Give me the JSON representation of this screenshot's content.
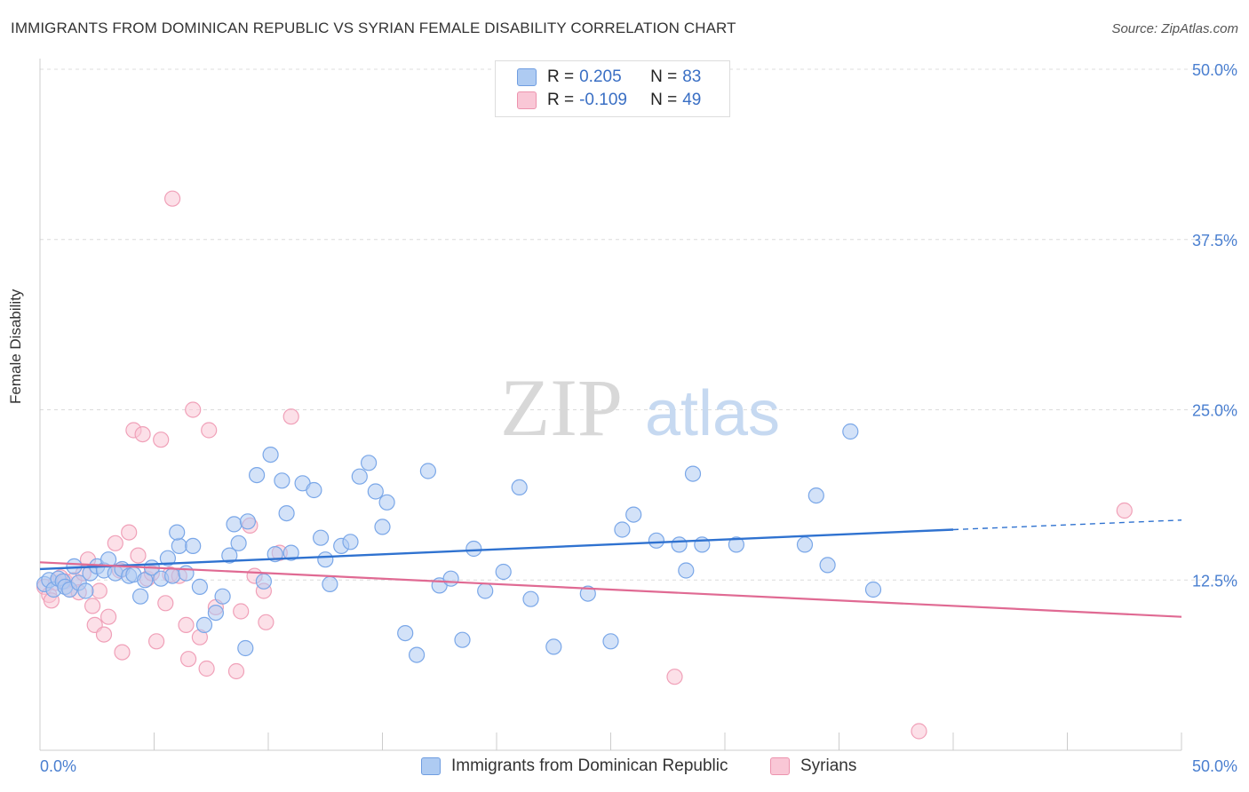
{
  "title": "IMMIGRANTS FROM DOMINICAN REPUBLIC VS SYRIAN FEMALE DISABILITY CORRELATION CHART",
  "source": "Source: ZipAtlas.com",
  "watermark": {
    "zip": "ZIP",
    "atlas": "atlas"
  },
  "legend": {
    "rows": [
      {
        "r_label": "R = ",
        "r_value": "0.205",
        "n_label": "N = ",
        "n_value": "83"
      },
      {
        "r_label": "R = ",
        "r_value": "-0.109",
        "n_label": "N = ",
        "n_value": "49"
      }
    ]
  },
  "chart_data": {
    "type": "scatter",
    "title": "IMMIGRANTS FROM DOMINICAN REPUBLIC VS SYRIAN FEMALE DISABILITY CORRELATION CHART",
    "xlabel": "",
    "ylabel": "Female Disability",
    "xlim": [
      0,
      50
    ],
    "ylim": [
      0,
      50
    ],
    "x_tick_labels": [
      "0.0%",
      "50.0%"
    ],
    "y_tick_labels": [
      "12.5%",
      "25.0%",
      "37.5%",
      "50.0%"
    ],
    "y_ticks": [
      12.5,
      25.0,
      37.5,
      50.0
    ],
    "grid": true,
    "legend_position": "top-center",
    "series": [
      {
        "name": "Immigrants from Dominican Republic",
        "color": "#7aa7e8",
        "fill": "#aecbf2",
        "r": 0.205,
        "n": 83,
        "trend": {
          "x0": 0,
          "y0": 13.3,
          "x1": 40,
          "y1": 16.2,
          "dash_to_x": 50,
          "dash_to_y": 16.9
        },
        "points": [
          [
            0.2,
            12.2
          ],
          [
            0.4,
            12.5
          ],
          [
            0.6,
            11.8
          ],
          [
            0.8,
            12.6
          ],
          [
            1.0,
            12.4
          ],
          [
            1.1,
            12.0
          ],
          [
            1.3,
            11.8
          ],
          [
            1.5,
            13.5
          ],
          [
            1.7,
            12.3
          ],
          [
            2.0,
            11.7
          ],
          [
            2.2,
            13.0
          ],
          [
            2.5,
            13.5
          ],
          [
            2.8,
            13.2
          ],
          [
            3.0,
            14.0
          ],
          [
            3.3,
            13.0
          ],
          [
            3.6,
            13.3
          ],
          [
            3.9,
            12.8
          ],
          [
            4.1,
            12.9
          ],
          [
            4.4,
            11.3
          ],
          [
            4.6,
            12.5
          ],
          [
            4.9,
            13.4
          ],
          [
            5.3,
            12.6
          ],
          [
            5.6,
            14.1
          ],
          [
            5.8,
            12.8
          ],
          [
            6.1,
            15.0
          ],
          [
            6.4,
            13.0
          ],
          [
            6.7,
            15.0
          ],
          [
            7.2,
            9.2
          ],
          [
            7.7,
            10.1
          ],
          [
            8.0,
            11.3
          ],
          [
            8.5,
            16.6
          ],
          [
            8.3,
            14.3
          ],
          [
            8.7,
            15.2
          ],
          [
            9.1,
            16.8
          ],
          [
            9.5,
            20.2
          ],
          [
            9.8,
            12.4
          ],
          [
            10.1,
            21.7
          ],
          [
            10.3,
            14.4
          ],
          [
            10.6,
            19.8
          ],
          [
            11.0,
            14.5
          ],
          [
            10.8,
            17.4
          ],
          [
            11.5,
            19.6
          ],
          [
            12.0,
            19.1
          ],
          [
            12.3,
            15.6
          ],
          [
            12.5,
            14.0
          ],
          [
            12.7,
            12.2
          ],
          [
            13.2,
            15.0
          ],
          [
            13.6,
            15.3
          ],
          [
            14.0,
            20.1
          ],
          [
            14.4,
            21.1
          ],
          [
            14.7,
            19.0
          ],
          [
            15.0,
            16.4
          ],
          [
            15.2,
            18.2
          ],
          [
            16.0,
            8.6
          ],
          [
            16.5,
            7.0
          ],
          [
            17.0,
            20.5
          ],
          [
            17.5,
            12.1
          ],
          [
            18.0,
            12.6
          ],
          [
            18.5,
            8.1
          ],
          [
            19.0,
            14.8
          ],
          [
            19.5,
            11.7
          ],
          [
            20.3,
            13.1
          ],
          [
            21.0,
            19.3
          ],
          [
            21.5,
            11.1
          ],
          [
            22.5,
            7.6
          ],
          [
            24.0,
            11.5
          ],
          [
            25.0,
            8.0
          ],
          [
            25.5,
            16.2
          ],
          [
            26.0,
            17.3
          ],
          [
            27.0,
            15.4
          ],
          [
            28.0,
            15.1
          ],
          [
            28.3,
            13.2
          ],
          [
            28.6,
            20.3
          ],
          [
            29.0,
            15.1
          ],
          [
            30.5,
            15.1
          ],
          [
            33.5,
            15.1
          ],
          [
            34.0,
            18.7
          ],
          [
            34.5,
            13.6
          ],
          [
            35.5,
            23.4
          ],
          [
            36.5,
            11.8
          ],
          [
            9.0,
            7.5
          ],
          [
            7.0,
            12.0
          ],
          [
            6.0,
            16.0
          ]
        ]
      },
      {
        "name": "Syrians",
        "color": "#f0a0b8",
        "fill": "#f9c7d6",
        "r": -0.109,
        "n": 49,
        "trend": {
          "x0": 0,
          "y0": 13.8,
          "x1": 50,
          "y1": 9.8
        },
        "points": [
          [
            0.2,
            12.0
          ],
          [
            0.4,
            11.4
          ],
          [
            0.5,
            11.0
          ],
          [
            0.7,
            12.3
          ],
          [
            0.9,
            12.7
          ],
          [
            1.1,
            12.4
          ],
          [
            1.3,
            11.8
          ],
          [
            1.5,
            12.5
          ],
          [
            1.7,
            11.6
          ],
          [
            1.9,
            13.0
          ],
          [
            2.1,
            14.0
          ],
          [
            2.3,
            10.6
          ],
          [
            2.4,
            9.2
          ],
          [
            2.6,
            11.7
          ],
          [
            2.8,
            8.5
          ],
          [
            3.0,
            9.8
          ],
          [
            3.3,
            15.2
          ],
          [
            3.5,
            13.2
          ],
          [
            3.6,
            7.2
          ],
          [
            3.9,
            16.0
          ],
          [
            4.1,
            23.5
          ],
          [
            4.3,
            14.3
          ],
          [
            4.5,
            23.2
          ],
          [
            4.7,
            12.6
          ],
          [
            4.9,
            13.0
          ],
          [
            5.1,
            8.0
          ],
          [
            5.3,
            22.8
          ],
          [
            5.5,
            10.8
          ],
          [
            5.7,
            12.9
          ],
          [
            5.8,
            40.5
          ],
          [
            6.1,
            12.8
          ],
          [
            6.4,
            9.2
          ],
          [
            6.5,
            6.7
          ],
          [
            6.7,
            25.0
          ],
          [
            7.0,
            8.3
          ],
          [
            7.3,
            6.0
          ],
          [
            7.4,
            23.5
          ],
          [
            7.7,
            10.5
          ],
          [
            8.6,
            5.8
          ],
          [
            8.8,
            10.2
          ],
          [
            9.2,
            16.5
          ],
          [
            9.4,
            12.8
          ],
          [
            9.8,
            11.7
          ],
          [
            9.9,
            9.4
          ],
          [
            10.5,
            14.5
          ],
          [
            11.0,
            24.5
          ],
          [
            27.8,
            5.4
          ],
          [
            38.5,
            1.4
          ],
          [
            47.5,
            17.6
          ]
        ]
      }
    ]
  },
  "bottom_legend": {
    "items": [
      "Immigrants from Dominican Republic",
      "Syrians"
    ]
  }
}
